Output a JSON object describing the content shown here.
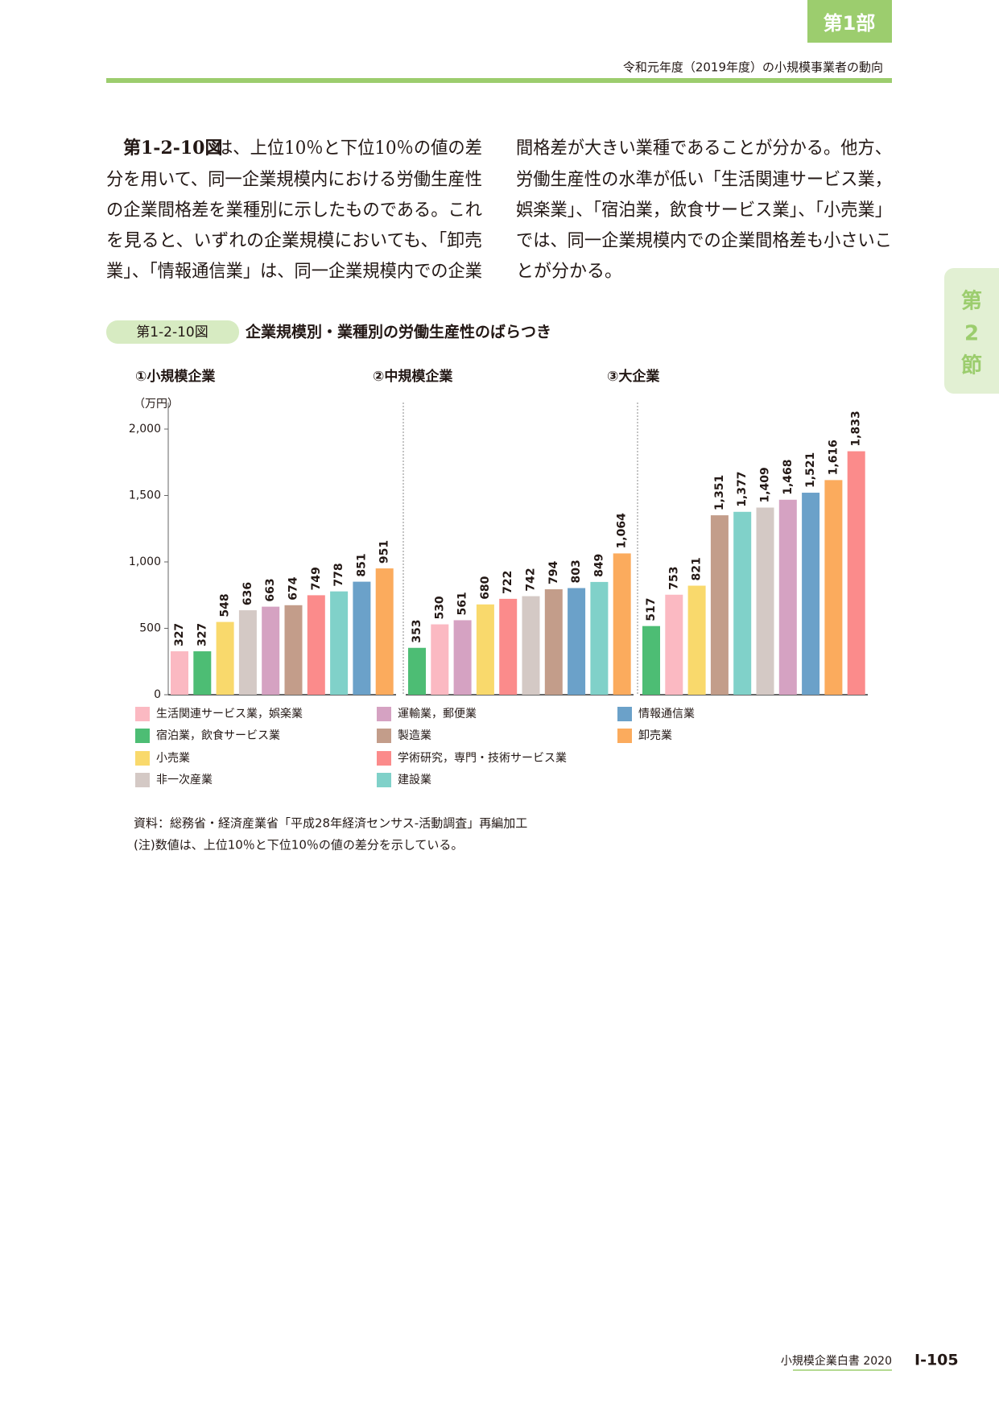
{
  "header": {
    "part": "第1部",
    "running_title": "令和元年度（2019年度）の小規模事業者の動向",
    "section_tab": "第2節"
  },
  "body": {
    "lead": "第1-2-10図",
    "lines": [
      "は、上位10％と下位10％の値の差",
      "分を用いて、同一企業規模内における労働生産性",
      "の企業間格差を業種別に示したものである。これ",
      "を見ると、いずれの企業規模においても、「卸売",
      "業」、「情報通信業」は、同一企業規模内での企業",
      "間格差が大きい業種であることが分かる。他方、",
      "労働生産性の水準が低い「生活関連サービス業，",
      "娯楽業」、「宿泊業，飲食サービス業」、「小売業」",
      "では、同一企業規模内での企業間格差も小さいこ",
      "とが分かる。"
    ]
  },
  "figure": {
    "number": "第1-2-10図",
    "title": "企業規模別・業種別の労働生産性のばらつき"
  },
  "chart_data": [
    {
      "type": "bar",
      "title": "①小規模企業",
      "y_label": "（万円）",
      "values": [
        327,
        327,
        548,
        636,
        663,
        674,
        749,
        778,
        851,
        951
      ],
      "colors": [
        "#fbb9c2",
        "#4dbd74",
        "#f9d96c",
        "#d4c9c5",
        "#d5a2c2",
        "#c39d8a",
        "#fb8b8b",
        "#80d1c9",
        "#6ba1c9",
        "#fbab5d"
      ],
      "ylim": [
        0,
        2200
      ],
      "yticks": [
        0,
        500,
        {
          "value": 1000,
          "label": "1,000"
        },
        {
          "value": 1500,
          "label": "1,500"
        },
        {
          "value": 2000,
          "label": "2,000"
        }
      ]
    },
    {
      "type": "bar",
      "title": "②中規模企業",
      "values": [
        353,
        530,
        561,
        680,
        722,
        742,
        794,
        803,
        849,
        1064
      ],
      "value_labels": [
        "353",
        "530",
        "561",
        "680",
        "722",
        "742",
        "794",
        "803",
        "849",
        "1,064"
      ],
      "colors": [
        "#4dbd74",
        "#fbb9c2",
        "#d5a2c2",
        "#f9d96c",
        "#fb8b8b",
        "#d4c9c5",
        "#c39d8a",
        "#6ba1c9",
        "#80d1c9",
        "#fbab5d"
      ],
      "ylim": [
        0,
        2200
      ]
    },
    {
      "type": "bar",
      "title": "③大企業",
      "values": [
        517,
        753,
        821,
        1351,
        1377,
        1409,
        1468,
        1521,
        1616,
        1833
      ],
      "value_labels": [
        "517",
        "753",
        "821",
        "1,351",
        "1,377",
        "1,409",
        "1,468",
        "1,521",
        "1,616",
        "1,833"
      ],
      "colors": [
        "#4dbd74",
        "#fbb9c2",
        "#f9d96c",
        "#c39d8a",
        "#80d1c9",
        "#d4c9c5",
        "#d5a2c2",
        "#6ba1c9",
        "#fbab5d",
        "#fb8b8b"
      ],
      "ylim": [
        0,
        2200
      ]
    }
  ],
  "legend": [
    {
      "name": "生活関連サービス業，娯楽業",
      "color": "#fbb9c2"
    },
    {
      "name": "宿泊業，飲食サービス業",
      "color": "#4dbd74"
    },
    {
      "name": "小売業",
      "color": "#f9d96c"
    },
    {
      "name": "非一次産業",
      "color": "#d4c9c5"
    },
    {
      "name": "運輸業，郵便業",
      "color": "#d5a2c2"
    },
    {
      "name": "製造業",
      "color": "#c39d8a"
    },
    {
      "name": "学術研究，専門・技術サービス業",
      "color": "#fb8b8b"
    },
    {
      "name": "建設業",
      "color": "#80d1c9"
    },
    {
      "name": "情報通信業",
      "color": "#6ba1c9"
    },
    {
      "name": "卸売業",
      "color": "#fbab5d"
    }
  ],
  "notes": [
    "資料：総務省・経済産業省「平成28年経済センサス‐活動調査」再編加工",
    "(注)数値は、上位10％と下位10％の値の差分を示している。"
  ],
  "footer": {
    "book": "小規模企業白書 2020",
    "page": "Ⅰ-105"
  }
}
